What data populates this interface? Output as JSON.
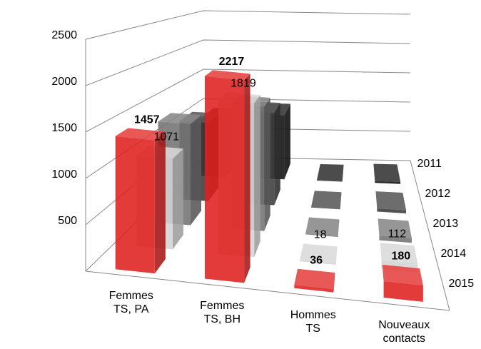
{
  "chart_data": {
    "type": "bar3d",
    "categories": [
      "Femmes TS, PA",
      "Femmes TS, BH",
      "Hommes TS",
      "Nouveaux contacts"
    ],
    "series": [
      {
        "name": "2011",
        "color": "#111111",
        "values": [
          900,
          1000,
          5,
          30
        ]
      },
      {
        "name": "2012",
        "color": "#3c3c3c",
        "values": [
          1100,
          1300,
          8,
          45
        ]
      },
      {
        "name": "2013",
        "color": "#747474",
        "values": [
          1300,
          1600,
          12,
          60
        ]
      },
      {
        "name": "2014",
        "color": "#d4d4d4",
        "values": [
          1071,
          1819,
          18,
          112
        ],
        "show_labels": true,
        "label_weight": "normal"
      },
      {
        "name": "2015",
        "color": "#e0201e",
        "values": [
          1457,
          2217,
          36,
          180
        ],
        "show_labels": true,
        "label_weight": "bold"
      }
    ],
    "ylim": [
      0,
      2500
    ],
    "yticks": [
      500,
      1000,
      1500,
      2000,
      2500
    ],
    "grid": true
  }
}
